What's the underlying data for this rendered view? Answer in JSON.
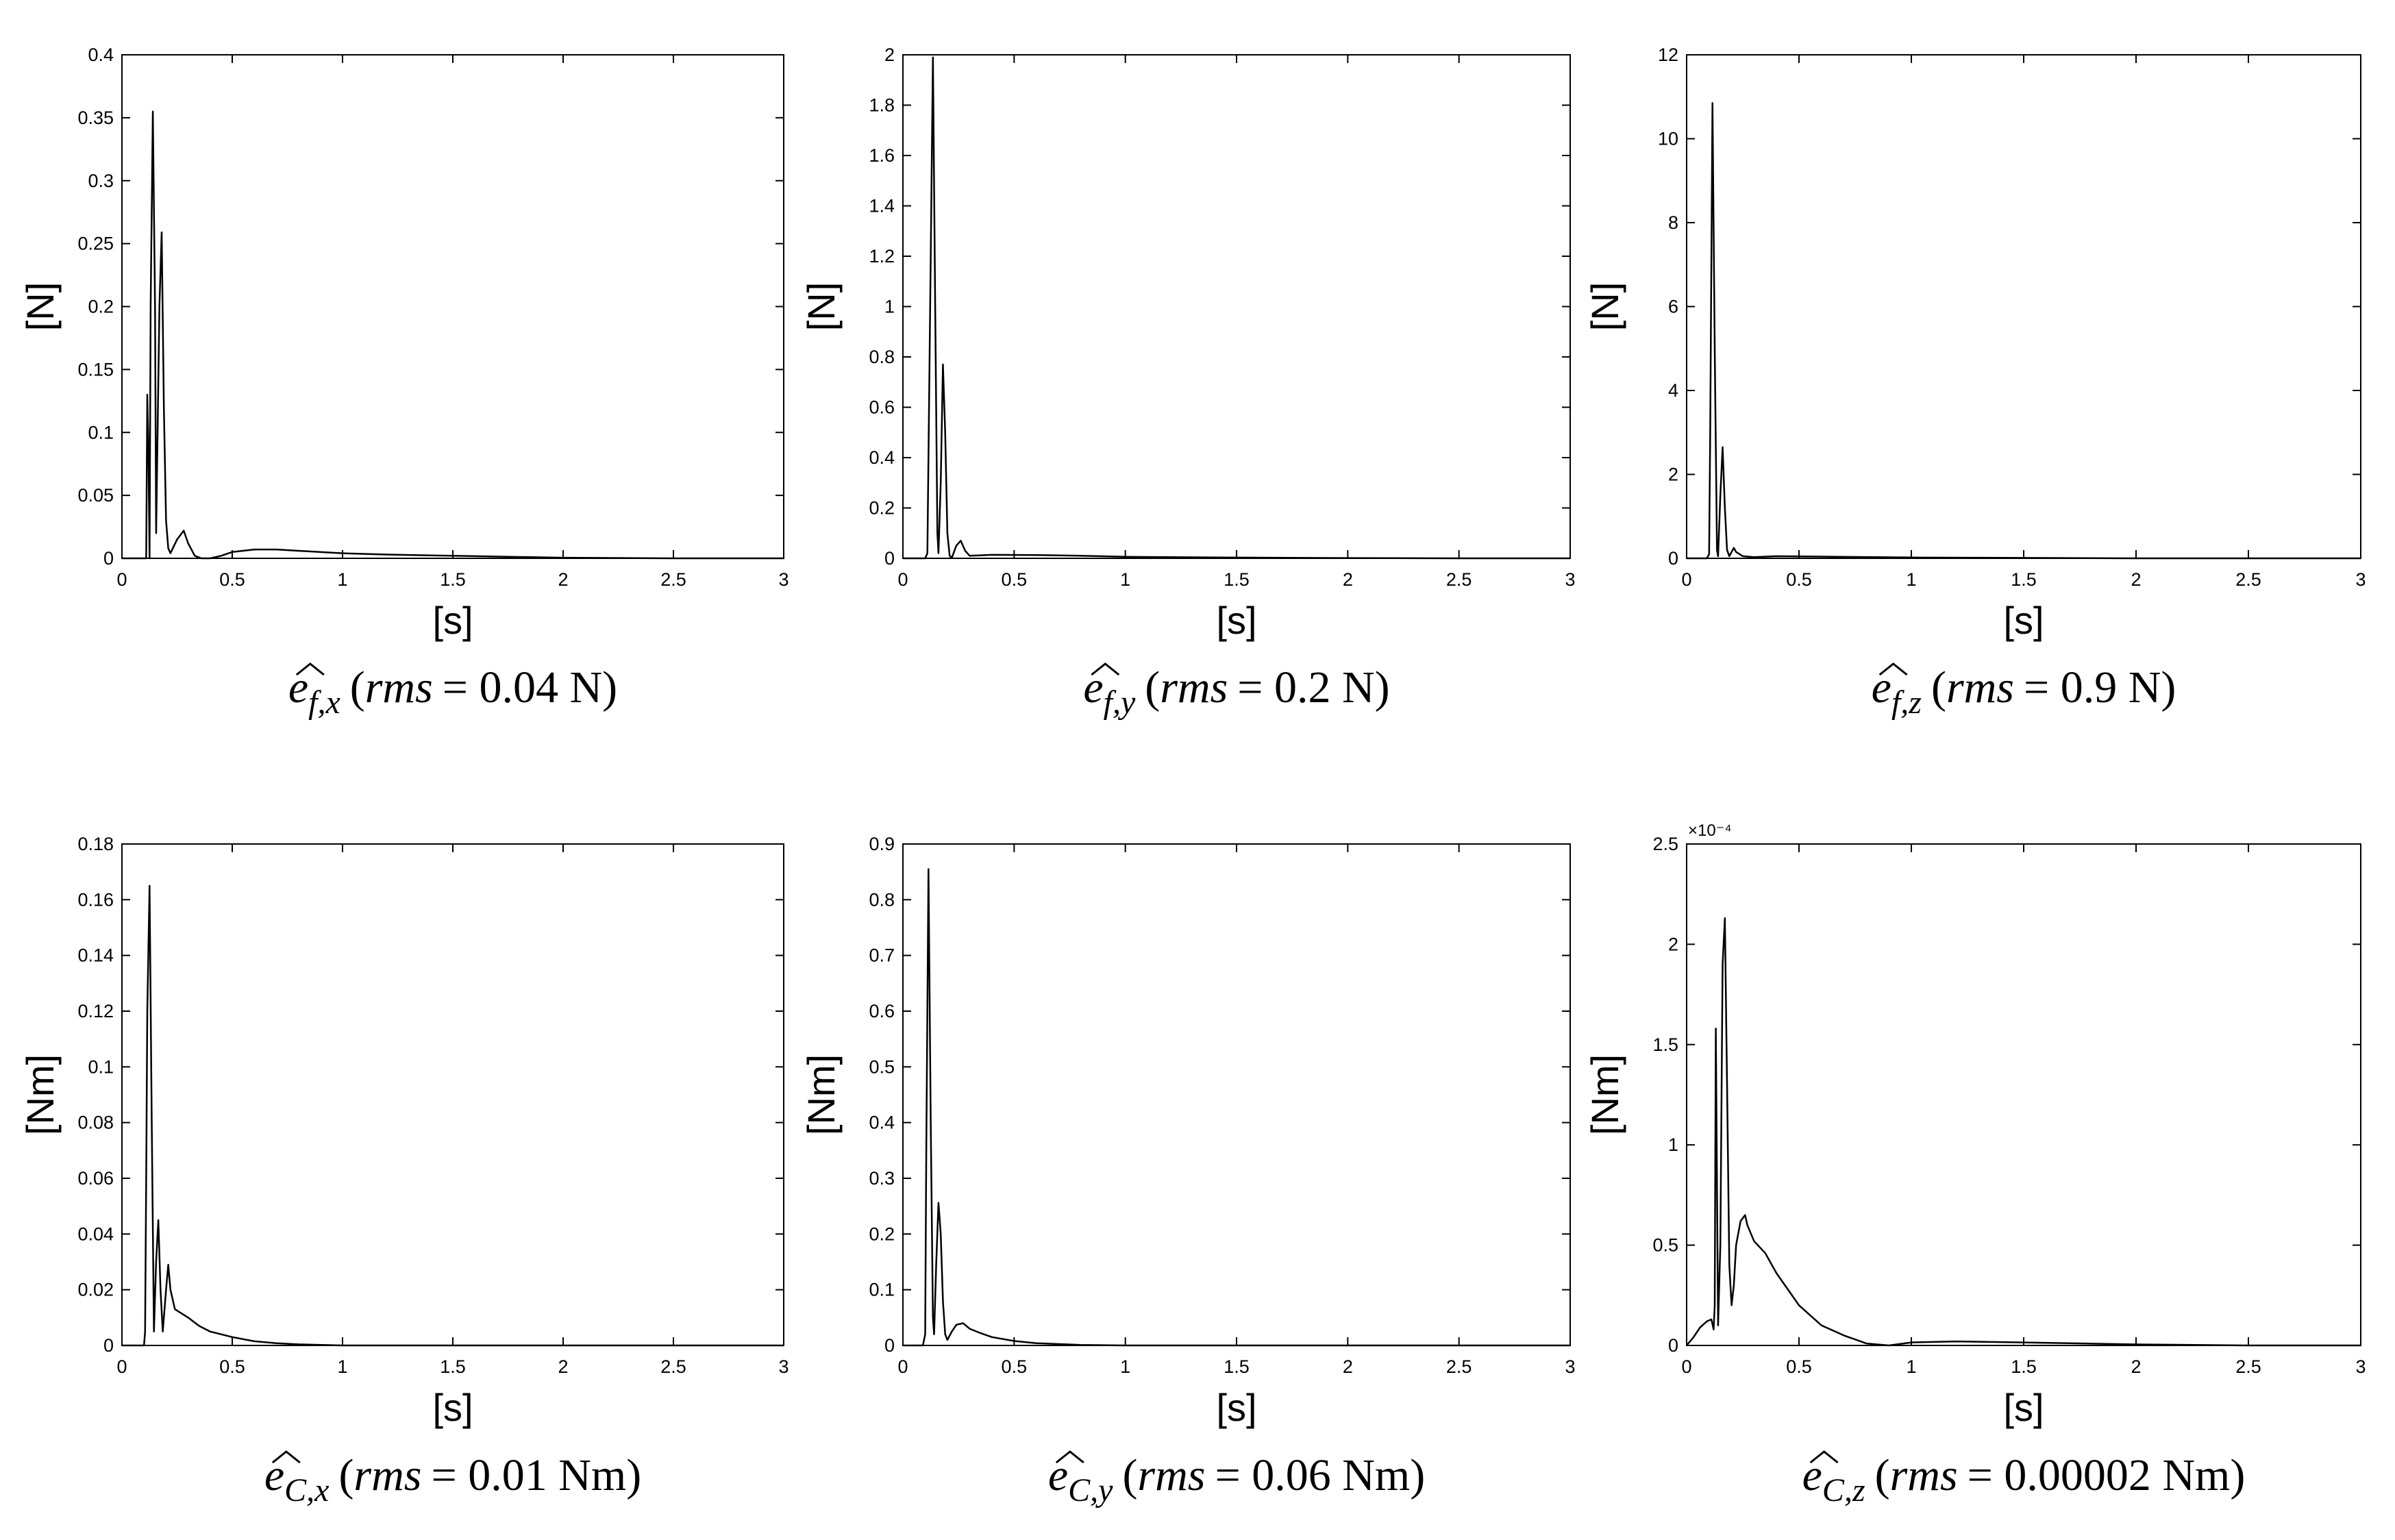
{
  "chart_data": [
    {
      "type": "line",
      "caption": {
        "sym": "e",
        "sub": "f,x",
        "rms": "rms",
        "value": "= 0.04 N)"
      },
      "xlabel": "[s]",
      "ylabel": "[N]",
      "xlim": [
        0,
        3
      ],
      "ylim": [
        0,
        0.4
      ],
      "xticks": [
        0,
        0.5,
        1,
        1.5,
        2,
        2.5,
        3
      ],
      "xtick_labels": [
        "0",
        "0.5",
        "1",
        "1.5",
        "2",
        "2.5",
        "3"
      ],
      "yticks": [
        0,
        0.05,
        0.1,
        0.15,
        0.2,
        0.25,
        0.3,
        0.35,
        0.4
      ],
      "ytick_labels": [
        "0",
        "0.05",
        "0.1",
        "0.15",
        "0.2",
        "0.25",
        "0.3",
        "0.35",
        "0.4"
      ],
      "exponent": "",
      "series": [
        {
          "x": [
            0,
            0.11,
            0.115,
            0.12,
            0.125,
            0.13,
            0.14,
            0.15,
            0.155,
            0.16,
            0.17,
            0.18,
            0.19,
            0.2,
            0.21,
            0.22,
            0.25,
            0.28,
            0.3,
            0.33,
            0.36,
            0.4,
            0.45,
            0.5,
            0.6,
            0.7,
            0.8,
            1.0,
            1.2,
            1.5,
            2.0,
            2.5,
            3.0
          ],
          "y": [
            0,
            0,
            0.13,
            0.09,
            0,
            0.2,
            0.355,
            0.2,
            0.02,
            0.08,
            0.2,
            0.259,
            0.12,
            0.03,
            0.008,
            0.004,
            0.015,
            0.022,
            0.012,
            0.002,
            0,
            0,
            0.002,
            0.005,
            0.007,
            0.007,
            0.006,
            0.004,
            0.003,
            0.002,
            0.0005,
            0,
            0
          ]
        }
      ]
    },
    {
      "type": "line",
      "caption": {
        "sym": "e",
        "sub": "f,y",
        "rms": "rms",
        "value": "= 0.2 N)"
      },
      "xlabel": "[s]",
      "ylabel": "[N]",
      "xlim": [
        0,
        3
      ],
      "ylim": [
        0,
        2
      ],
      "xticks": [
        0,
        0.5,
        1,
        1.5,
        2,
        2.5,
        3
      ],
      "xtick_labels": [
        "0",
        "0.5",
        "1",
        "1.5",
        "2",
        "2.5",
        "3"
      ],
      "yticks": [
        0,
        0.2,
        0.4,
        0.6,
        0.8,
        1,
        1.2,
        1.4,
        1.6,
        1.8,
        2
      ],
      "ytick_labels": [
        "0",
        "0.2",
        "0.4",
        "0.6",
        "0.8",
        "1",
        "1.2",
        "1.4",
        "1.6",
        "1.8",
        "2"
      ],
      "exponent": "",
      "series": [
        {
          "x": [
            0,
            0.1,
            0.105,
            0.11,
            0.125,
            0.135,
            0.145,
            0.155,
            0.16,
            0.17,
            0.18,
            0.19,
            0.2,
            0.21,
            0.22,
            0.24,
            0.26,
            0.28,
            0.3,
            0.35,
            0.4,
            0.6,
            0.8,
            1.0,
            1.5,
            2.0,
            2.5,
            3.0
          ],
          "y": [
            0,
            0,
            0.01,
            0.02,
            1.2,
            1.99,
            1.0,
            0.1,
            0.02,
            0.3,
            0.77,
            0.5,
            0.1,
            0.01,
            0.002,
            0.05,
            0.07,
            0.03,
            0.01,
            0.012,
            0.014,
            0.013,
            0.01,
            0.006,
            0.003,
            0.001,
            0,
            0
          ]
        }
      ]
    },
    {
      "type": "line",
      "caption": {
        "sym": "e",
        "sub": "f,z",
        "rms": "rms",
        "value": "= 0.9 N)"
      },
      "xlabel": "[s]",
      "ylabel": "[N]",
      "xlim": [
        0,
        3
      ],
      "ylim": [
        0,
        12
      ],
      "xticks": [
        0,
        0.5,
        1,
        1.5,
        2,
        2.5,
        3
      ],
      "xtick_labels": [
        "0",
        "0.5",
        "1",
        "1.5",
        "2",
        "2.5",
        "3"
      ],
      "yticks": [
        0,
        2,
        4,
        6,
        8,
        10,
        12
      ],
      "ytick_labels": [
        "0",
        "2",
        "4",
        "6",
        "8",
        "10",
        "12"
      ],
      "exponent": "",
      "series": [
        {
          "x": [
            0,
            0.09,
            0.1,
            0.105,
            0.115,
            0.125,
            0.135,
            0.14,
            0.15,
            0.16,
            0.17,
            0.18,
            0.19,
            0.2,
            0.21,
            0.22,
            0.25,
            0.3,
            0.4,
            0.6,
            1.0,
            1.5,
            2.0,
            3.0
          ],
          "y": [
            0,
            0,
            0.1,
            3.0,
            10.85,
            5.0,
            0.2,
            0.05,
            1.5,
            2.65,
            1.2,
            0.2,
            0.05,
            0.15,
            0.25,
            0.15,
            0.05,
            0.03,
            0.05,
            0.04,
            0.02,
            0.01,
            0,
            0
          ]
        }
      ]
    },
    {
      "type": "line",
      "caption": {
        "sym": "e",
        "sub": "C,x",
        "rms": "rms",
        "value": "= 0.01 Nm)"
      },
      "xlabel": "[s]",
      "ylabel": "[Nm]",
      "xlim": [
        0,
        3
      ],
      "ylim": [
        0,
        0.18
      ],
      "xticks": [
        0,
        0.5,
        1,
        1.5,
        2,
        2.5,
        3
      ],
      "xtick_labels": [
        "0",
        "0.5",
        "1",
        "1.5",
        "2",
        "2.5",
        "3"
      ],
      "yticks": [
        0,
        0.02,
        0.04,
        0.06,
        0.08,
        0.1,
        0.12,
        0.14,
        0.16,
        0.18
      ],
      "ytick_labels": [
        "0",
        "0.02",
        "0.04",
        "0.06",
        "0.08",
        "0.1",
        "0.12",
        "0.14",
        "0.16",
        "0.18"
      ],
      "exponent": "",
      "series": [
        {
          "x": [
            0,
            0.1,
            0.105,
            0.11,
            0.115,
            0.125,
            0.135,
            0.145,
            0.155,
            0.165,
            0.175,
            0.185,
            0.2,
            0.21,
            0.22,
            0.24,
            0.26,
            0.3,
            0.35,
            0.4,
            0.5,
            0.6,
            0.7,
            0.8,
            1.0,
            1.5,
            2.0,
            3.0
          ],
          "y": [
            0,
            0,
            0.005,
            0.06,
            0.12,
            0.165,
            0.08,
            0.005,
            0.03,
            0.045,
            0.02,
            0.005,
            0.02,
            0.029,
            0.02,
            0.013,
            0.012,
            0.01,
            0.007,
            0.005,
            0.003,
            0.0015,
            0.0008,
            0.0004,
            0,
            0,
            0,
            0
          ]
        }
      ]
    },
    {
      "type": "line",
      "caption": {
        "sym": "e",
        "sub": "C,y",
        "rms": "rms",
        "value": "= 0.06 Nm)"
      },
      "xlabel": "[s]",
      "ylabel": "[Nm]",
      "xlim": [
        0,
        3
      ],
      "ylim": [
        0,
        0.9
      ],
      "xticks": [
        0,
        0.5,
        1,
        1.5,
        2,
        2.5,
        3
      ],
      "xtick_labels": [
        "0",
        "0.5",
        "1",
        "1.5",
        "2",
        "2.5",
        "3"
      ],
      "yticks": [
        0,
        0.1,
        0.2,
        0.3,
        0.4,
        0.5,
        0.6,
        0.7,
        0.8,
        0.9
      ],
      "ytick_labels": [
        "0",
        "0.1",
        "0.2",
        "0.3",
        "0.4",
        "0.5",
        "0.6",
        "0.7",
        "0.8",
        "0.9"
      ],
      "exponent": "",
      "series": [
        {
          "x": [
            0,
            0.09,
            0.1,
            0.105,
            0.115,
            0.125,
            0.135,
            0.14,
            0.15,
            0.16,
            0.17,
            0.18,
            0.19,
            0.2,
            0.22,
            0.24,
            0.27,
            0.3,
            0.35,
            0.4,
            0.5,
            0.6,
            0.8,
            1.0,
            1.5,
            2.0,
            3.0
          ],
          "y": [
            0,
            0,
            0.02,
            0.35,
            0.855,
            0.4,
            0.05,
            0.02,
            0.15,
            0.256,
            0.2,
            0.08,
            0.02,
            0.01,
            0.025,
            0.037,
            0.04,
            0.03,
            0.022,
            0.015,
            0.008,
            0.004,
            0.001,
            0,
            0,
            0,
            0
          ]
        }
      ]
    },
    {
      "type": "line",
      "caption": {
        "sym": "e",
        "sub": "C,z",
        "rms": "rms",
        "value": "= 0.00002 Nm)"
      },
      "xlabel": "[s]",
      "ylabel": "[Nm]",
      "xlim": [
        0,
        3
      ],
      "ylim": [
        0,
        2.5
      ],
      "xticks": [
        0,
        0.5,
        1,
        1.5,
        2,
        2.5,
        3
      ],
      "xtick_labels": [
        "0",
        "0.5",
        "1",
        "1.5",
        "2",
        "2.5",
        "3"
      ],
      "yticks": [
        0,
        0.5,
        1,
        1.5,
        2,
        2.5
      ],
      "ytick_labels": [
        "0",
        "0.5",
        "1",
        "1.5",
        "2",
        "2.5"
      ],
      "exponent": "×10⁻⁴",
      "series": [
        {
          "x": [
            0,
            0.03,
            0.06,
            0.09,
            0.11,
            0.12,
            0.125,
            0.13,
            0.135,
            0.14,
            0.15,
            0.16,
            0.17,
            0.18,
            0.19,
            0.2,
            0.21,
            0.22,
            0.24,
            0.26,
            0.27,
            0.3,
            0.35,
            0.4,
            0.5,
            0.6,
            0.7,
            0.8,
            0.9,
            1.0,
            1.2,
            1.5,
            2.0,
            2.5,
            3.0
          ],
          "y": [
            0,
            0.04,
            0.09,
            0.12,
            0.13,
            0.08,
            0.2,
            1.58,
            0.8,
            0.1,
            0.5,
            1.9,
            2.13,
            1.3,
            0.4,
            0.2,
            0.3,
            0.5,
            0.62,
            0.65,
            0.6,
            0.52,
            0.46,
            0.36,
            0.2,
            0.1,
            0.05,
            0.01,
            0,
            0.015,
            0.02,
            0.015,
            0.005,
            0,
            0
          ]
        }
      ]
    }
  ]
}
